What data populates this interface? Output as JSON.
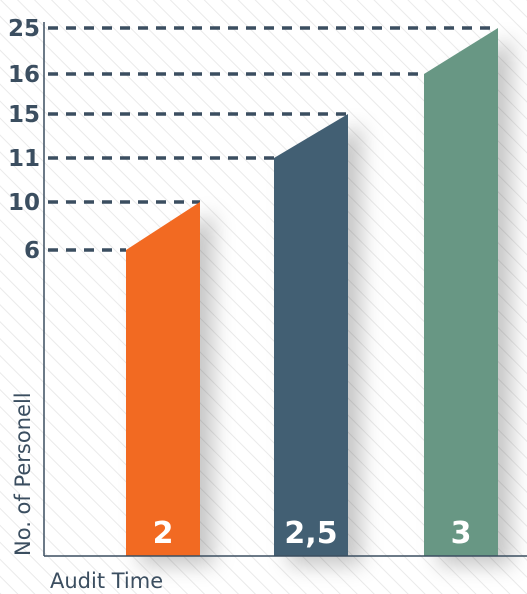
{
  "chart_data": {
    "type": "bar",
    "xlabel": "Audit Time",
    "ylabel": "No. of Personell",
    "categories": [
      "2",
      "2,5",
      "3"
    ],
    "series": [
      {
        "values": [
          10,
          15,
          25
        ],
        "low_values": [
          6,
          11,
          16
        ]
      }
    ],
    "colors": [
      "#f26a24",
      "#425f73",
      "#679784"
    ],
    "y_ticks": [
      "6",
      "10",
      "11",
      "15",
      "16",
      "25"
    ],
    "y_tick_values": [
      6,
      10,
      11,
      15,
      16,
      25
    ],
    "style": "slanted tops rising from the lower value (left edge) to the higher value (right edge), dashed guide lines from axis to each level, diagonal hatched background",
    "grid": false,
    "legend": "none"
  }
}
